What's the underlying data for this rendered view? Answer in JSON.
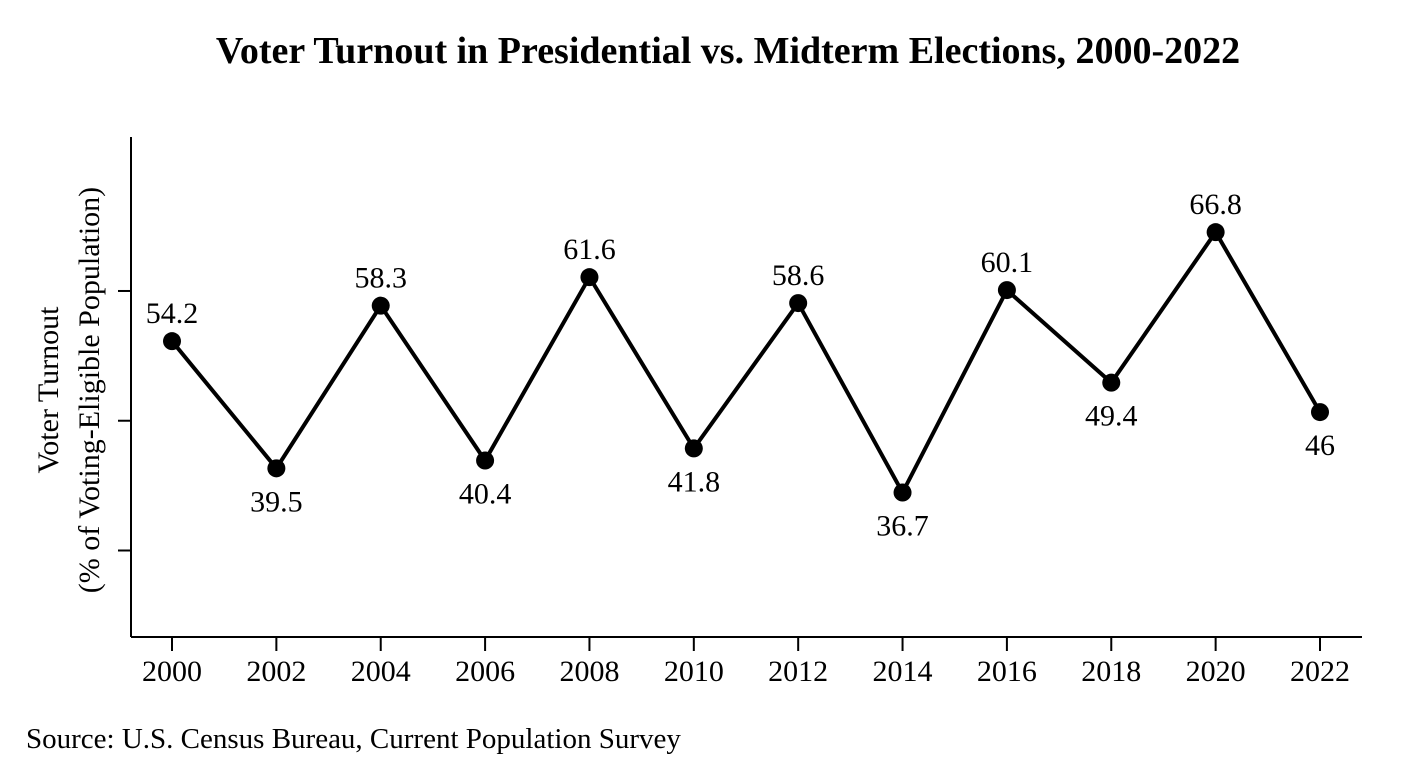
{
  "chart_data": {
    "type": "line",
    "title": "Voter Turnout in Presidential vs. Midterm Elections, 2000-2022",
    "ylabel_line1": "Voter Turnout",
    "ylabel_line2": "(% of Voting-Eligible Population)",
    "xlabel": "",
    "source": "Source: U.S. Census Bureau, Current Population Survey",
    "x": [
      "2000",
      "2002",
      "2004",
      "2006",
      "2008",
      "2010",
      "2012",
      "2014",
      "2016",
      "2018",
      "2020",
      "2022"
    ],
    "series": [
      {
        "values": [
          54.2,
          39.5,
          58.3,
          40.4,
          61.6,
          41.8,
          58.6,
          36.7,
          60.1,
          49.4,
          66.8,
          46
        ],
        "labels": [
          "54.2",
          "39.5",
          "58.3",
          "40.4",
          "61.6",
          "41.8",
          "58.6",
          "36.7",
          "60.1",
          "49.4",
          "66.8",
          "46"
        ]
      }
    ],
    "ylim": [
      20,
      77.8
    ],
    "yticks": [
      30,
      45,
      60
    ],
    "ytick_labels_shown": false,
    "grid": false,
    "legend": "none",
    "line_color": "#000000",
    "marker_color": "#000000"
  }
}
